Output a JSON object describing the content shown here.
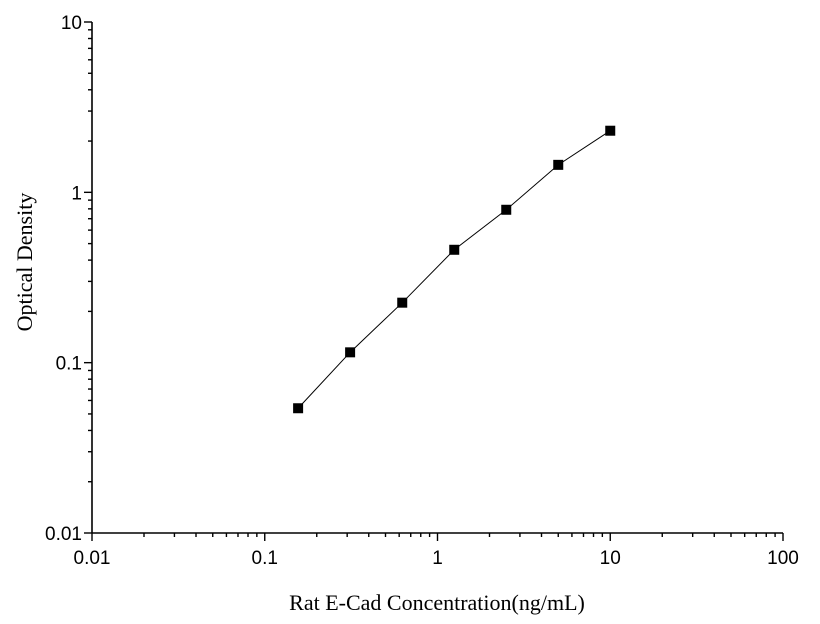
{
  "chart_data": {
    "type": "line",
    "xlabel": "Rat E-Cad Concentration(ng/mL)",
    "ylabel": "Optical Density",
    "xscale": "log",
    "yscale": "log",
    "xlim": [
      0.01,
      100
    ],
    "ylim": [
      0.01,
      10
    ],
    "xticks": [
      "0.01",
      "0.1",
      "1",
      "10",
      "100"
    ],
    "yticks": [
      "0.01",
      "0.1",
      "1",
      "10"
    ],
    "grid": false,
    "legend": "none",
    "series": [
      {
        "marker": "square",
        "color": "#000000",
        "x": [
          0.156,
          0.312,
          0.625,
          1.25,
          2.5,
          5,
          10
        ],
        "y": [
          0.054,
          0.115,
          0.225,
          0.46,
          0.79,
          1.45,
          2.3
        ]
      }
    ]
  }
}
